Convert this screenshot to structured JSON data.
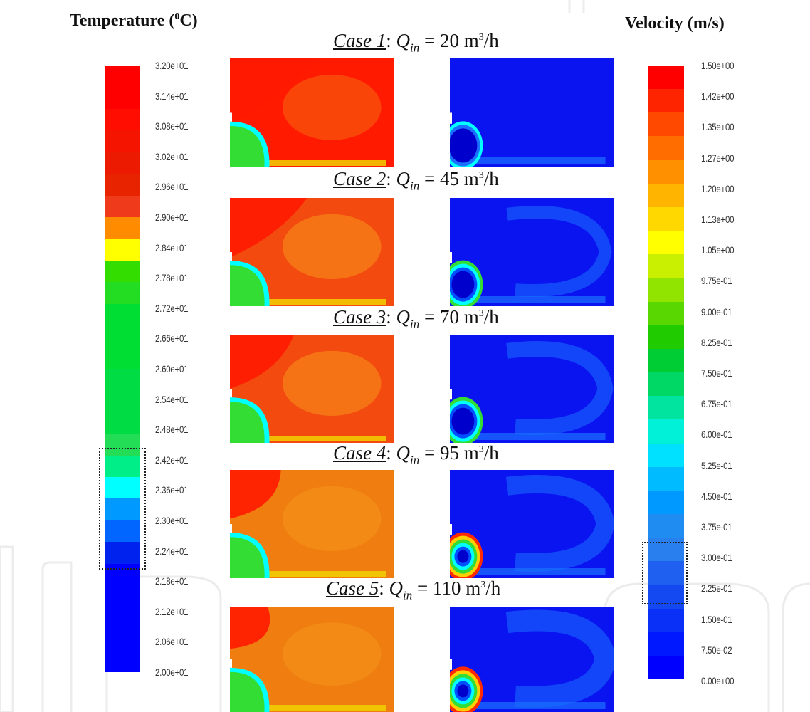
{
  "temperature": {
    "title": "Temperature (",
    "title_sup": "0",
    "title_end": "C)",
    "ticks": [
      "3.20e+01",
      "3.14e+01",
      "3.08e+01",
      "3.02e+01",
      "2.96e+01",
      "2.90e+01",
      "2.84e+01",
      "2.78e+01",
      "2.72e+01",
      "2.66e+01",
      "2.60e+01",
      "2.54e+01",
      "2.48e+01",
      "2.42e+01",
      "2.36e+01",
      "2.30e+01",
      "2.24e+01",
      "2.18e+01",
      "2.12e+01",
      "2.06e+01",
      "2.00e+01"
    ],
    "band_colors": [
      "#ff0000",
      "#ff0000",
      "#ff0d00",
      "#f41400",
      "#ec1a00",
      "#e82400",
      "#ef3a1c",
      "#ff8c00",
      "#ffff00",
      "#33dd00",
      "#22dd22",
      "#00dd33",
      "#00dd33",
      "#00dd33",
      "#00dd44",
      "#00dd44",
      "#00dd44",
      "#22dd55",
      "#00ee88",
      "#00ffff",
      "#0099ff",
      "#0066ff",
      "#0022ee",
      "#0000ff",
      "#0000ff",
      "#0000ff",
      "#0000ff",
      "#0000ff"
    ]
  },
  "velocity": {
    "title": "Velocity (m/s)",
    "ticks": [
      "1.50e+00",
      "1.42e+00",
      "1.35e+00",
      "1.27e+00",
      "1.20e+00",
      "1.13e+00",
      "1.05e+00",
      "9.75e-01",
      "9.00e-01",
      "8.25e-01",
      "7.50e-01",
      "6.75e-01",
      "6.00e-01",
      "5.25e-01",
      "4.50e-01",
      "3.75e-01",
      "3.00e-01",
      "2.25e-01",
      "1.50e-01",
      "7.50e-02",
      "0.00e+00"
    ],
    "band_colors": [
      "#ff0000",
      "#ff2400",
      "#ff4800",
      "#ff6c00",
      "#ff9000",
      "#ffb400",
      "#ffd800",
      "#ffff00",
      "#c8f000",
      "#90e400",
      "#58d800",
      "#20cc00",
      "#00cc33",
      "#00d866",
      "#00e4a0",
      "#00f0d8",
      "#00e0ff",
      "#00bbff",
      "#0099ff",
      "#1e8cf0",
      "#2a7fef",
      "#2060f0",
      "#1448f0",
      "#0a30f8",
      "#0018ff",
      "#0000ff"
    ]
  },
  "cases": [
    {
      "name": "Case 1",
      "q_symbol": "Q",
      "q_sub": "in",
      "value": "= 20 m",
      "unit_sup": "3",
      "unit_end": "/h"
    },
    {
      "name": "Case 2",
      "q_symbol": "Q",
      "q_sub": "in",
      "value": "= 45 m",
      "unit_sup": "3",
      "unit_end": "/h"
    },
    {
      "name": "Case 3",
      "q_symbol": "Q",
      "q_sub": "in",
      "value": "= 70 m",
      "unit_sup": "3",
      "unit_end": "/h"
    },
    {
      "name": "Case 4",
      "q_symbol": "Q",
      "q_sub": "in",
      "value": "= 95 m",
      "unit_sup": "3",
      "unit_end": "/h"
    },
    {
      "name": "Case 5",
      "q_symbol": "Q",
      "q_sub": "in",
      "value": "= 110 m",
      "unit_sup": "3",
      "unit_end": "/h"
    }
  ],
  "panel_colors": {
    "hot": "#ff1a00",
    "warm": "#f34a10",
    "orange": "#ef7d10",
    "yellow_strip": "#f0d000",
    "green": "#33dd33",
    "cyan": "#00ffff",
    "blue": "#0a14f0",
    "light_blue": "#1a70ff",
    "mid_blue": "#0050ff"
  }
}
